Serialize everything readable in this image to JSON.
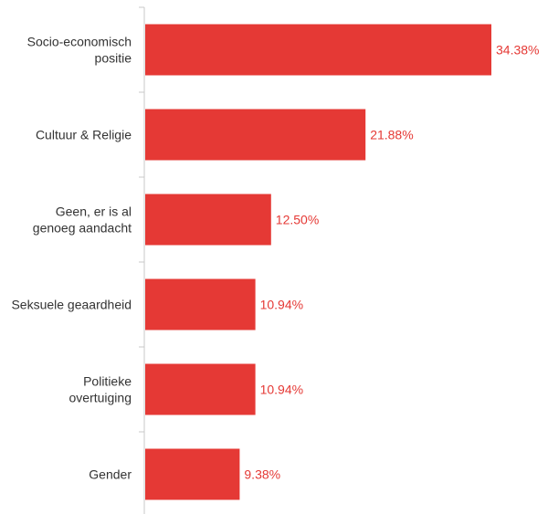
{
  "chart_data": {
    "type": "bar",
    "orientation": "horizontal",
    "categories": [
      [
        "Socio-economisch",
        "positie"
      ],
      [
        "Cultuur & Religie"
      ],
      [
        "Geen, er is al",
        "genoeg aandacht"
      ],
      [
        "Seksuele geaardheid"
      ],
      [
        "Politieke",
        "overtuiging"
      ],
      [
        "Gender"
      ]
    ],
    "values": [
      34.38,
      21.88,
      12.5,
      10.94,
      10.94,
      9.38
    ],
    "value_labels": [
      "34.38%",
      "21.88%",
      "12.50%",
      "10.94%",
      "10.94%",
      "9.38%"
    ],
    "xlim": [
      0,
      34.38
    ],
    "grid": false,
    "legend": "none",
    "bar_color": "#e53935",
    "label_color": "#e53935"
  }
}
